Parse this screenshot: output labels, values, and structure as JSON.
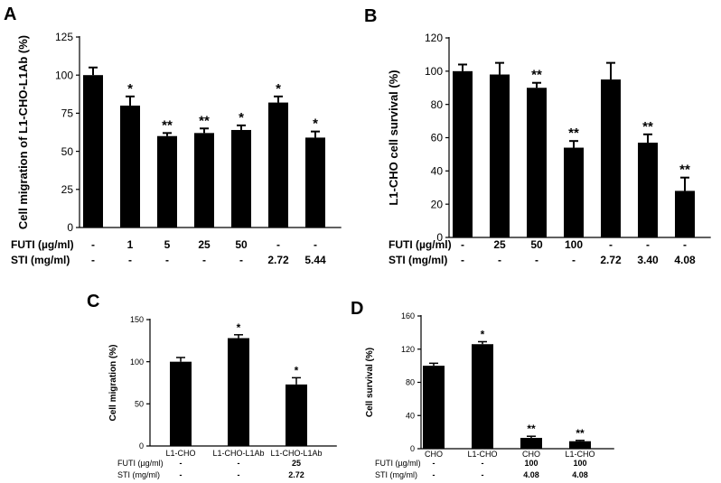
{
  "chart_data": [
    {
      "panel": "A",
      "type": "bar",
      "ylabel": "Cell migration of L1-CHO-L1Ab (%)",
      "ylim": [
        0,
        125
      ],
      "yticks": [
        0,
        25,
        50,
        75,
        100,
        125
      ],
      "values": [
        100,
        80,
        60,
        62,
        64,
        82,
        59
      ],
      "errors": [
        5,
        6,
        2,
        3,
        3,
        4,
        4
      ],
      "significance": [
        "",
        "*",
        "**",
        "**",
        "*",
        "*",
        "*"
      ],
      "rows": [
        {
          "label": "FUTI (µg/ml)",
          "values": [
            "-",
            "1",
            "5",
            "25",
            "50",
            "-",
            "-"
          ]
        },
        {
          "label": "STI (mg/ml)",
          "values": [
            "-",
            "-",
            "-",
            "-",
            "-",
            "2.72",
            "5.44"
          ]
        }
      ]
    },
    {
      "panel": "B",
      "type": "bar",
      "ylabel": "L1-CHO cell survival (%)",
      "ylim": [
        0,
        120
      ],
      "yticks": [
        0,
        20,
        40,
        60,
        80,
        100,
        120
      ],
      "values": [
        100,
        98,
        90,
        54,
        95,
        57,
        28
      ],
      "errors": [
        4,
        7,
        3,
        4,
        10,
        5,
        8
      ],
      "significance": [
        "",
        "",
        "**",
        "**",
        "",
        "**",
        "**"
      ],
      "rows": [
        {
          "label": "FUTI (µg/ml)",
          "values": [
            "-",
            "25",
            "50",
            "100",
            "-",
            "-",
            "-"
          ]
        },
        {
          "label": "STI (mg/ml)",
          "values": [
            "-",
            "-",
            "-",
            "-",
            "2.72",
            "3.40",
            "4.08"
          ]
        }
      ]
    },
    {
      "panel": "C",
      "type": "bar",
      "ylabel": "Cell migration (%)",
      "ylim": [
        0,
        150
      ],
      "yticks": [
        0,
        50,
        100,
        150
      ],
      "categories": [
        "L1-CHO",
        "L1-CHO-L1Ab",
        "L1-CHO-L1Ab"
      ],
      "values": [
        100,
        128,
        73
      ],
      "errors": [
        5,
        4,
        8
      ],
      "significance": [
        "",
        "*",
        "*"
      ],
      "rows": [
        {
          "label": "FUTI (µg/ml)",
          "values": [
            "-",
            "-",
            "25"
          ]
        },
        {
          "label": "STI (mg/ml)",
          "values": [
            "-",
            "-",
            "2.72"
          ]
        }
      ]
    },
    {
      "panel": "D",
      "type": "bar",
      "ylabel": "Cell survival (%)",
      "ylim": [
        0,
        160
      ],
      "yticks": [
        0,
        40,
        80,
        120,
        160
      ],
      "categories": [
        "CHO",
        "L1-CHO",
        "CHO",
        "L1-CHO"
      ],
      "values": [
        100,
        126,
        13,
        9
      ],
      "errors": [
        3,
        3,
        2,
        1
      ],
      "significance": [
        "",
        "*",
        "**",
        "**"
      ],
      "rows": [
        {
          "label": "FUTI (µg/ml)",
          "values": [
            "-",
            "-",
            "100",
            "100"
          ]
        },
        {
          "label": "STI (mg/ml)",
          "values": [
            "-",
            "-",
            "4.08",
            "4.08"
          ]
        }
      ]
    }
  ]
}
